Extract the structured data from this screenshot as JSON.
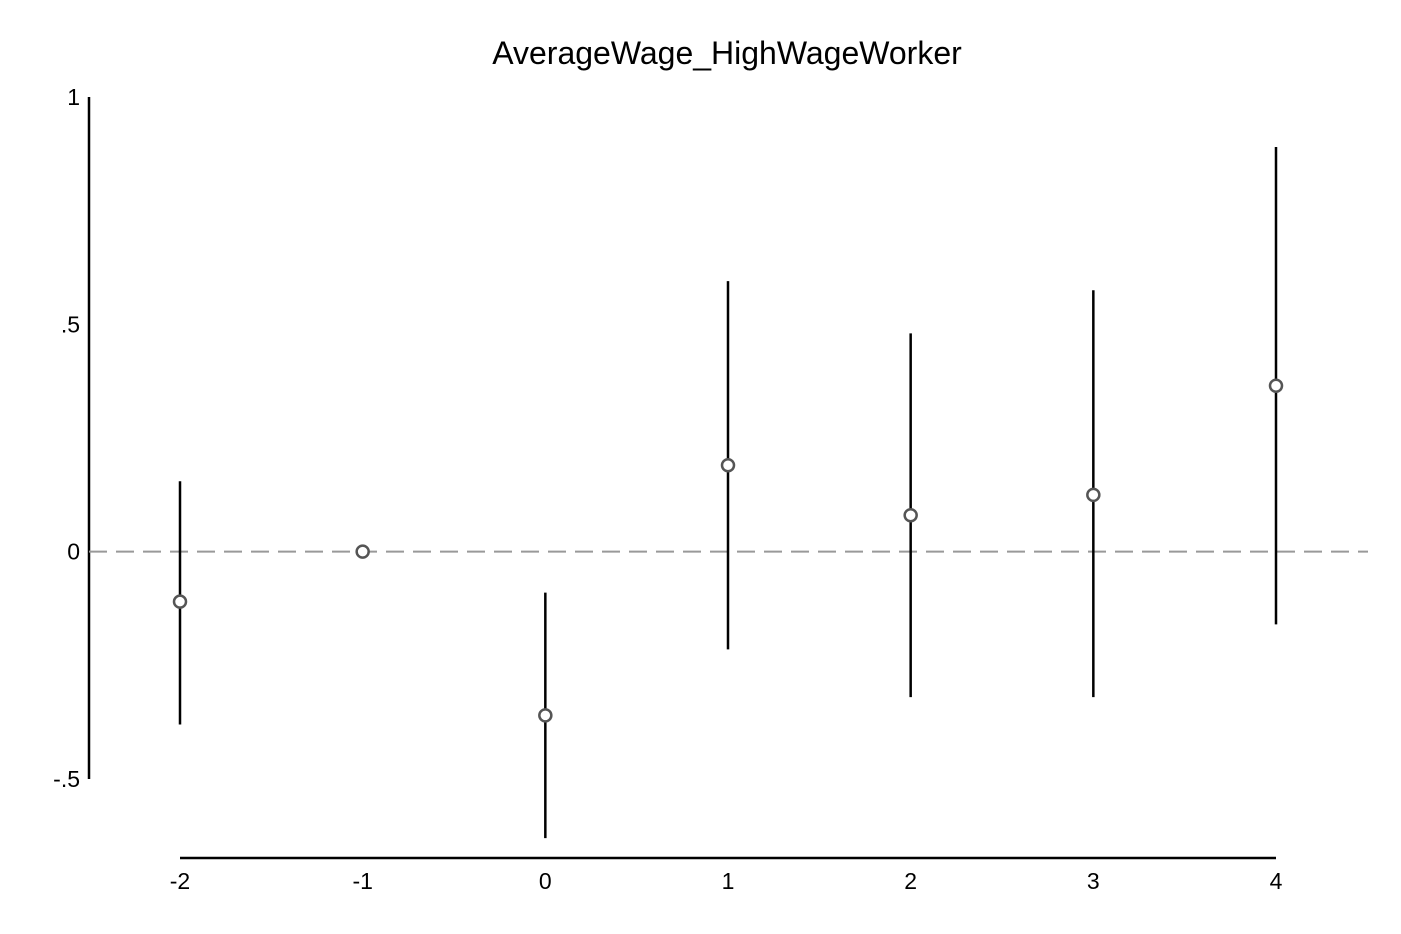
{
  "chart_data": {
    "type": "scatter",
    "title": "AverageWage_HighWageWorker",
    "xlabel": "",
    "ylabel": "",
    "x_ticks": [
      "-2",
      "-1",
      "0",
      "1",
      "2",
      "3",
      "4"
    ],
    "y_ticks": [
      {
        "value": 1,
        "label": "1"
      },
      {
        "value": 0.5,
        "label": ".5"
      },
      {
        "value": 0,
        "label": "0"
      },
      {
        "value": -0.5,
        "label": "-.5"
      }
    ],
    "xlim": [
      -2,
      4
    ],
    "ylim": [
      -0.5,
      1
    ],
    "reference_line": {
      "y": 0,
      "style": "dashed",
      "color": "#999999"
    },
    "grid": false,
    "legend": "none",
    "marker": "hollow-circle",
    "colors": {
      "point": "#555555",
      "ci": "#000000",
      "axis": "#000000"
    },
    "points": [
      {
        "x": -2,
        "y": -0.11,
        "ci_low": -0.38,
        "ci_high": 0.155
      },
      {
        "x": -1,
        "y": 0.0,
        "ci_low": null,
        "ci_high": null
      },
      {
        "x": 0,
        "y": -0.36,
        "ci_low": -0.63,
        "ci_high": -0.09
      },
      {
        "x": 1,
        "y": 0.19,
        "ci_low": -0.215,
        "ci_high": 0.595
      },
      {
        "x": 2,
        "y": 0.08,
        "ci_low": -0.32,
        "ci_high": 0.48
      },
      {
        "x": 3,
        "y": 0.125,
        "ci_low": -0.32,
        "ci_high": 0.575
      },
      {
        "x": 4,
        "y": 0.365,
        "ci_low": -0.16,
        "ci_high": 0.89
      }
    ]
  }
}
